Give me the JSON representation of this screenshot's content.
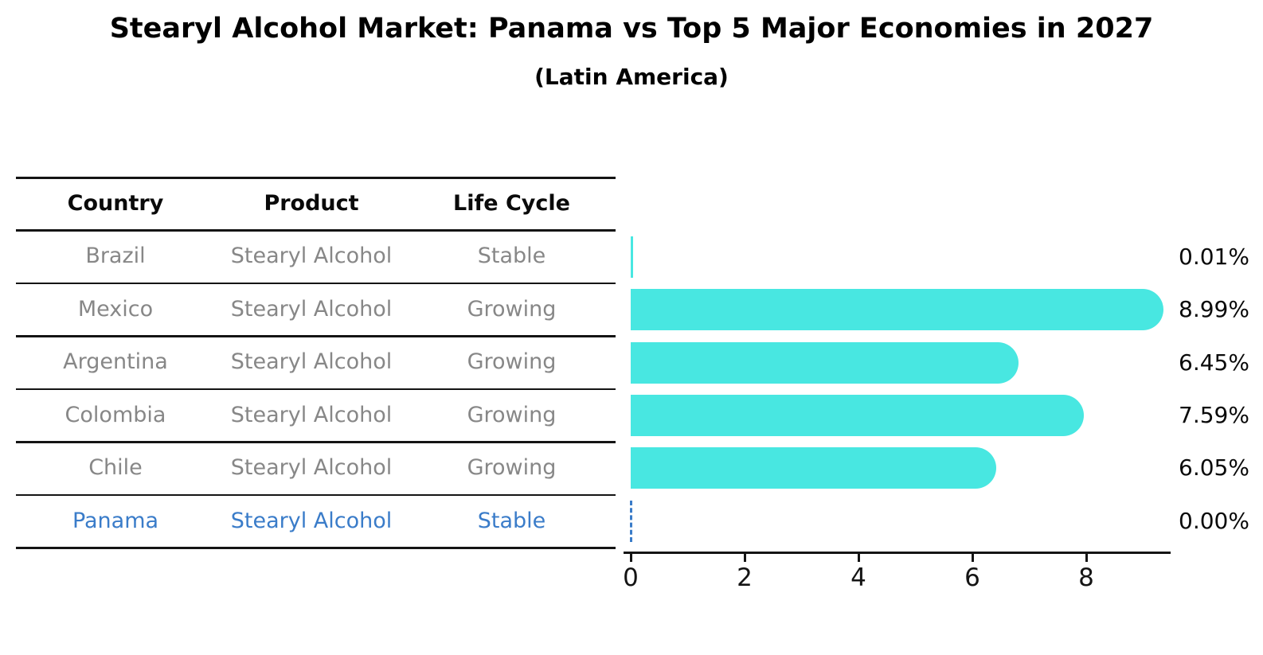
{
  "title": "Stearyl Alcohol Market: Panama vs Top 5 Major Economies in 2027",
  "subtitle": "(Latin America)",
  "table": {
    "headers": [
      "Country",
      "Product",
      "Life Cycle"
    ],
    "rows": [
      {
        "country": "Brazil",
        "product": "Stearyl Alcohol",
        "life_cycle": "Stable",
        "highlight": false
      },
      {
        "country": "Mexico",
        "product": "Stearyl Alcohol",
        "life_cycle": "Growing",
        "highlight": false
      },
      {
        "country": "Argentina",
        "product": "Stearyl Alcohol",
        "life_cycle": "Growing",
        "highlight": false
      },
      {
        "country": "Colombia",
        "product": "Stearyl Alcohol",
        "life_cycle": "Growing",
        "highlight": false
      },
      {
        "country": "Chile",
        "product": "Stearyl Alcohol",
        "life_cycle": "Growing",
        "highlight": false
      },
      {
        "country": "Panama",
        "product": "Stearyl Alcohol",
        "life_cycle": "Stable",
        "highlight": true
      }
    ]
  },
  "chart_data": {
    "type": "bar",
    "orientation": "horizontal",
    "title": "Stearyl Alcohol Market: Panama vs Top 5 Major Economies in 2027",
    "subtitle": "(Latin America)",
    "categories": [
      "Brazil",
      "Mexico",
      "Argentina",
      "Colombia",
      "Chile",
      "Panama"
    ],
    "values": [
      0.01,
      8.99,
      6.45,
      7.59,
      6.05,
      0.0
    ],
    "value_labels": [
      "0.01%",
      "8.99%",
      "6.45%",
      "7.59%",
      "6.05%",
      "0.00%"
    ],
    "xlabel": "",
    "ylabel": "",
    "x_ticks": [
      0,
      2,
      4,
      6,
      8
    ],
    "xlim": [
      0,
      9.44
    ],
    "grid": false,
    "legend": false,
    "highlight_index": 5,
    "highlight_style": "dashed zero line"
  },
  "colors": {
    "bar": "#48E7E1",
    "highlight": "#3A7CC9",
    "row_text": "#878787",
    "line": "#141414",
    "background": "#FFFFFF"
  }
}
